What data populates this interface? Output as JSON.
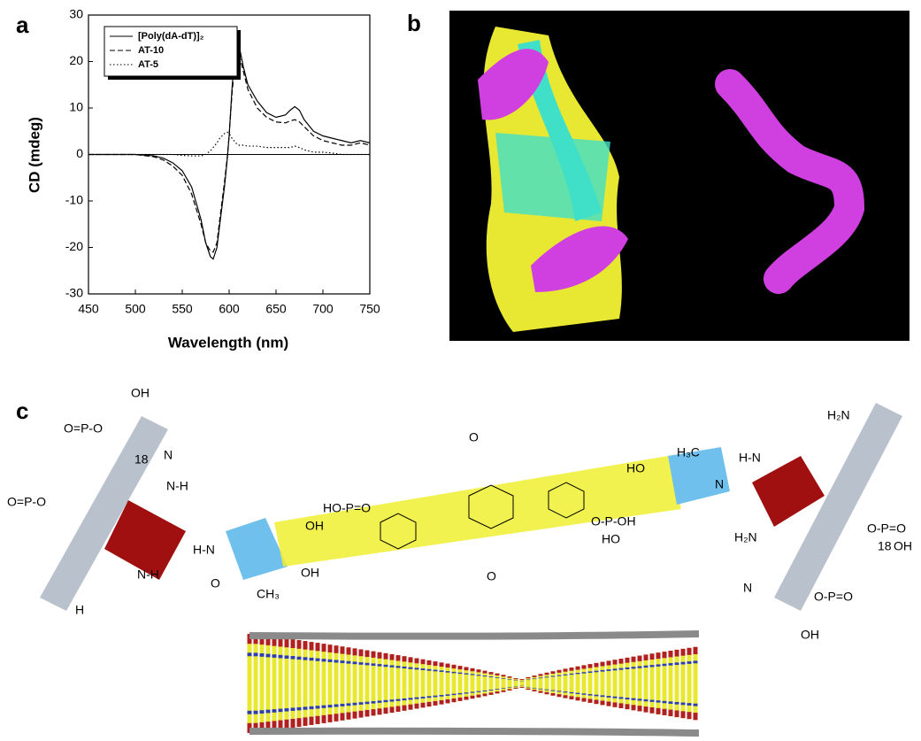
{
  "panel_labels": [
    "a",
    "b",
    "c"
  ],
  "chart_data": {
    "type": "line",
    "xlabel": "Wavelength (nm)",
    "ylabel": "CD (mdeg)",
    "x": [
      450,
      480,
      500,
      520,
      530,
      540,
      550,
      560,
      570,
      575,
      580,
      583,
      587,
      590,
      595,
      598,
      600,
      603,
      607,
      610,
      615,
      620,
      630,
      640,
      650,
      660,
      665,
      670,
      675,
      680,
      690,
      700,
      710,
      720,
      730,
      740,
      750
    ],
    "series": [
      {
        "name": "[Poly(dA-dT)]₂",
        "color": "#000000",
        "style": "solid",
        "values": [
          0,
          0,
          0,
          -0.3,
          -0.8,
          -1.8,
          -3.5,
          -7,
          -14,
          -19,
          -22,
          -22.5,
          -20,
          -15,
          -7,
          -1,
          4,
          14,
          24.7,
          24,
          19,
          15,
          11.5,
          9,
          8,
          8.5,
          9.5,
          10.3,
          9.5,
          7.5,
          5,
          4,
          3.5,
          3,
          2.5,
          3,
          2.5
        ]
      },
      {
        "name": "AT-10",
        "color": "#000000",
        "style": "dashed",
        "values": [
          0,
          0,
          0,
          -0.5,
          -1.2,
          -2.5,
          -4.5,
          -8.5,
          -15,
          -19,
          -20.8,
          -21,
          -19,
          -14,
          -6,
          -0.5,
          4,
          13,
          21.5,
          22,
          18,
          14,
          10,
          8,
          7,
          6.8,
          7.2,
          7.5,
          7,
          6,
          4,
          3,
          2.5,
          2,
          2,
          2.5,
          2
        ]
      },
      {
        "name": "AT-5",
        "color": "#000000",
        "style": "dotted",
        "values": [
          0,
          0,
          0,
          0,
          0,
          0,
          -0.2,
          -0.3,
          -0.3,
          0,
          0.8,
          1.5,
          2.5,
          3.5,
          4.5,
          4.8,
          4.5,
          3.5,
          2.5,
          2,
          2,
          1.8,
          1.8,
          1.5,
          1.5,
          1.5,
          1.5,
          1.8,
          1.5,
          1,
          0.5,
          0.5,
          0.3,
          0,
          0,
          0,
          0
        ]
      }
    ],
    "xlim": [
      450,
      750
    ],
    "xticks": [
      450,
      500,
      550,
      600,
      650,
      700,
      750
    ],
    "ylim": [
      -30,
      30
    ],
    "yticks": [
      -30,
      -20,
      -10,
      0,
      10,
      20,
      30
    ],
    "legend": "upper left"
  },
  "structure": {
    "labels": [
      "OH",
      "O=P-O",
      "18",
      "O=P-O",
      "N",
      "N-H",
      "H",
      "N-H",
      "H-N",
      "O",
      "CH₃",
      "OH",
      "OH",
      "HO-P=O",
      "O",
      "O",
      "HO",
      "O-P-OH",
      "HO",
      "H₃C",
      "H-N",
      "N",
      "H₂N",
      "18",
      "OH",
      "O-P=O",
      "H₂N",
      "N",
      "O-P=O",
      "OH"
    ]
  }
}
